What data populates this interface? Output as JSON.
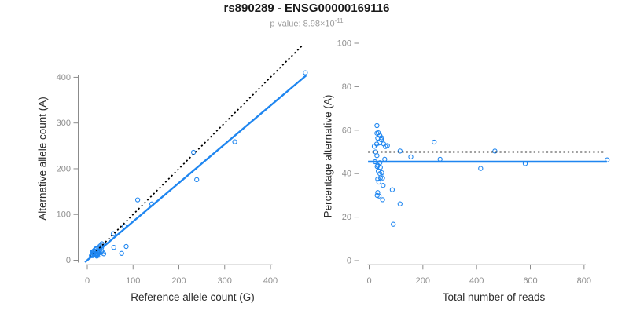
{
  "header": {
    "title": "rs890289 - ENSG00000169116",
    "pvalue_prefix": "p-value: ",
    "pvalue_mantissa": "8.98×10",
    "pvalue_exponent": "-11"
  },
  "style": {
    "accent_blue": "#1F86F0",
    "axis_gray": "#8B8B8B",
    "tick_label_gray": "#8E8E8E",
    "subtitle_gray": "#9B9B9B",
    "dotted_black": "#000000",
    "background": "#FFFFFF"
  },
  "chart_data": [
    {
      "type": "scatter",
      "panel": "left",
      "xlabel": "Reference allele count (G)",
      "ylabel": "Alternative allele count (A)",
      "xticks": [
        0,
        100,
        200,
        300,
        400
      ],
      "yticks": [
        0,
        100,
        200,
        300,
        400
      ],
      "xlim": [
        0,
        476
      ],
      "ylim": [
        0,
        430
      ],
      "grid": false,
      "marker": "open-circle",
      "points": [
        [
          476,
          410
        ],
        [
          322,
          259
        ],
        [
          232,
          236
        ],
        [
          239,
          176
        ],
        [
          141,
          123
        ],
        [
          110,
          132
        ],
        [
          81,
          74
        ],
        [
          57,
          58
        ],
        [
          58,
          28
        ],
        [
          85,
          30
        ],
        [
          75,
          15
        ],
        [
          11,
          18
        ],
        [
          14,
          20
        ],
        [
          12,
          17
        ],
        [
          17,
          23
        ],
        [
          20,
          26
        ],
        [
          14,
          18
        ],
        [
          20,
          25
        ],
        [
          13,
          15
        ],
        [
          9,
          10
        ],
        [
          17,
          20
        ],
        [
          25,
          29
        ],
        [
          29,
          32
        ],
        [
          32,
          36
        ],
        [
          12,
          12
        ],
        [
          15,
          14
        ],
        [
          31,
          27
        ],
        [
          12,
          10
        ],
        [
          18,
          14
        ],
        [
          22,
          18
        ],
        [
          17,
          13
        ],
        [
          24,
          18
        ],
        [
          20,
          14
        ],
        [
          24,
          16
        ],
        [
          28,
          19
        ],
        [
          20,
          12
        ],
        [
          26,
          16
        ],
        [
          31,
          19
        ],
        [
          23,
          13
        ],
        [
          34,
          18
        ],
        [
          22,
          10
        ],
        [
          26,
          11
        ],
        [
          21,
          9
        ],
        [
          36,
          14
        ]
      ],
      "lines": [
        {
          "name": "identity-line",
          "slope": 1,
          "intercept": 0,
          "x_range": [
            0,
            470
          ],
          "style": "dotted",
          "color": "#000000"
        },
        {
          "name": "regression-line",
          "slope": 0.845,
          "intercept": 0,
          "x_range": [
            -5,
            478
          ],
          "style": "solid",
          "color": "#1F86F0"
        }
      ]
    },
    {
      "type": "scatter",
      "panel": "right",
      "xlabel": "Total number of reads",
      "ylabel": "Percentage alternative (A)",
      "xticks": [
        0,
        200,
        400,
        600,
        800
      ],
      "yticks": [
        0,
        20,
        40,
        60,
        80,
        100
      ],
      "xlim": [
        0,
        890
      ],
      "ylim": [
        0,
        100
      ],
      "grid": false,
      "marker": "open-circle",
      "points": [
        [
          886,
          46.3
        ],
        [
          581,
          44.6
        ],
        [
          468,
          50.4
        ],
        [
          415,
          42.4
        ],
        [
          264,
          46.6
        ],
        [
          242,
          54.5
        ],
        [
          155,
          47.7
        ],
        [
          115,
          50.4
        ],
        [
          86,
          32.6
        ],
        [
          115,
          26.1
        ],
        [
          90,
          16.7
        ],
        [
          29,
          62.1
        ],
        [
          34,
          58.8
        ],
        [
          29,
          58.6
        ],
        [
          40,
          57.5
        ],
        [
          46,
          56.5
        ],
        [
          32,
          56.3
        ],
        [
          45,
          55.6
        ],
        [
          28,
          53.6
        ],
        [
          19,
          52.6
        ],
        [
          37,
          54.1
        ],
        [
          54,
          53.7
        ],
        [
          61,
          52.5
        ],
        [
          68,
          52.9
        ],
        [
          24,
          50.0
        ],
        [
          29,
          48.3
        ],
        [
          58,
          46.6
        ],
        [
          22,
          45.5
        ],
        [
          32,
          43.8
        ],
        [
          40,
          45.0
        ],
        [
          30,
          43.3
        ],
        [
          42,
          42.9
        ],
        [
          34,
          41.2
        ],
        [
          40,
          40.0
        ],
        [
          47,
          40.4
        ],
        [
          32,
          37.5
        ],
        [
          42,
          38.1
        ],
        [
          50,
          38.0
        ],
        [
          36,
          36.1
        ],
        [
          52,
          34.6
        ],
        [
          32,
          31.3
        ],
        [
          37,
          29.7
        ],
        [
          30,
          30.0
        ],
        [
          50,
          28.0
        ]
      ],
      "lines": [
        {
          "name": "expected-50-percent-line",
          "y": 50,
          "x_range": [
            -4,
            873
          ],
          "style": "dotted",
          "color": "#000000"
        },
        {
          "name": "mean-percentage-line",
          "y": 45.5,
          "x_range": [
            -4,
            885
          ],
          "style": "solid",
          "color": "#1F86F0"
        }
      ]
    }
  ]
}
